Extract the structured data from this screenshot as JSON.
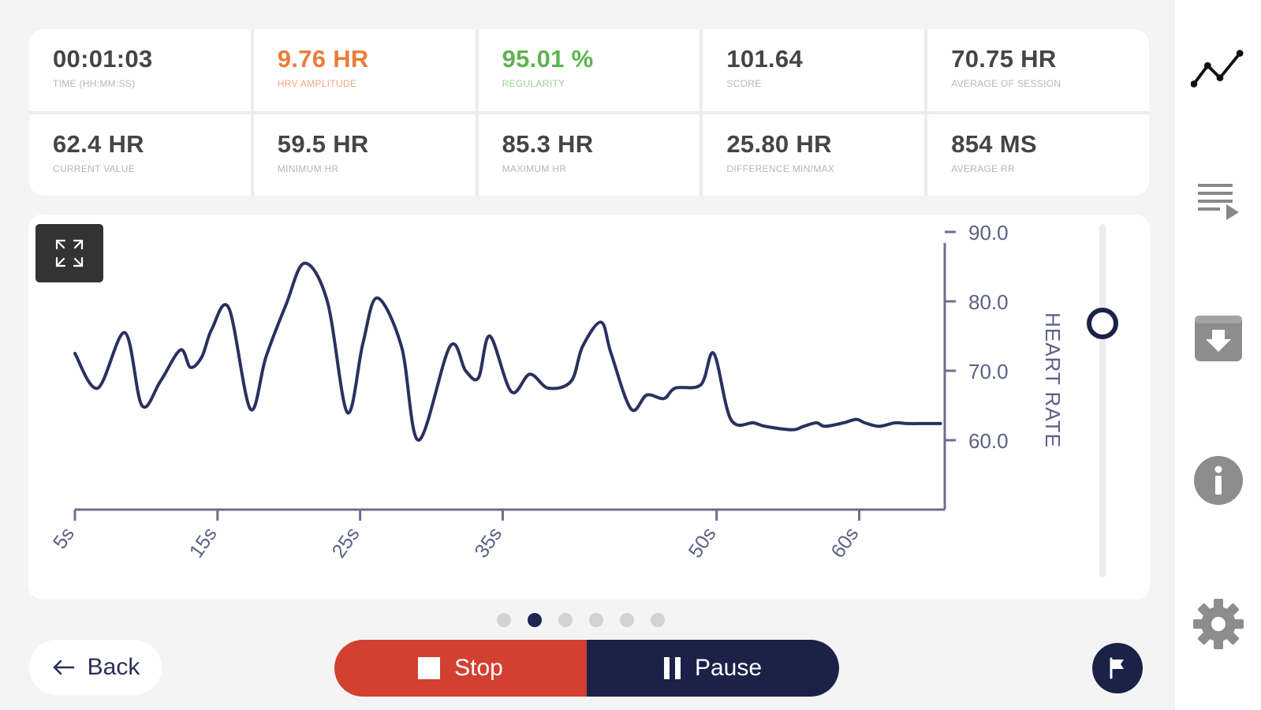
{
  "stats": [
    {
      "value": "00:01:03",
      "label": "TIME (HH:MM:SS)",
      "color": "#454545"
    },
    {
      "value": "9.76 HR",
      "label": "HRV AMPLITUDE",
      "color": "#ec7c3a"
    },
    {
      "value": "95.01 %",
      "label": "REGULARITY",
      "color": "#5db450"
    },
    {
      "value": "101.64",
      "label": "SCORE",
      "color": "#454545"
    },
    {
      "value": "70.75 HR",
      "label": "AVERAGE OF SESSION",
      "color": "#454545"
    },
    {
      "value": "62.4 HR",
      "label": "CURRENT VALUE",
      "color": "#454545"
    },
    {
      "value": "59.5 HR",
      "label": "MINIMUM HR",
      "color": "#454545"
    },
    {
      "value": "85.3 HR",
      "label": "MAXIMUM HR",
      "color": "#454545"
    },
    {
      "value": "25.80 HR",
      "label": "DIFFERENCE MIN/MAX",
      "color": "#454545"
    },
    {
      "value": "854 MS",
      "label": "AVERAGE RR",
      "color": "#454545"
    }
  ],
  "chart_data": {
    "type": "line",
    "ylabel": "HEART RATE",
    "xlabel": "",
    "ylim": [
      50,
      90
    ],
    "xlim": [
      5,
      66
    ],
    "y_ticks": [
      90,
      80,
      70,
      60
    ],
    "y_tick_labels": [
      "90.0",
      "80.0",
      "70.0",
      "60.0"
    ],
    "x_ticks": [
      5,
      15,
      25,
      35,
      50,
      60
    ],
    "x_tick_labels": [
      "5s",
      "15s",
      "25s",
      "35s",
      "50s",
      "60s"
    ],
    "grid": false,
    "line_color": "#2a3160",
    "series": [
      {
        "name": "",
        "x": [
          5,
          6.6,
          8.5,
          9.7,
          11.0,
          12.4,
          13.1,
          13.9,
          14.6,
          15.8,
          17.3,
          18.4,
          19.8,
          21.1,
          22.7,
          24.1,
          25.2,
          26.2,
          27.9,
          29.1,
          31.3,
          32.4,
          33.3,
          34.1,
          35.6,
          36.9,
          38.2,
          39.8,
          40.6,
          41.9,
          42.6,
          44.0,
          45.1,
          46.3,
          47.1,
          48.9,
          49.8,
          51.0,
          52.6,
          53.4,
          55.3,
          56.1,
          57.0,
          57.6,
          58.9,
          59.8,
          60.4,
          61.4,
          62.5,
          63.4,
          64.6,
          65.7
        ],
        "y": [
          72.5,
          67.5,
          75.5,
          65.0,
          68.5,
          73.0,
          70.5,
          72.0,
          76.0,
          79.0,
          64.5,
          72.0,
          79.5,
          85.5,
          80.0,
          64.0,
          74.0,
          80.5,
          73.5,
          60.0,
          73.5,
          70.0,
          69.0,
          75.0,
          67.0,
          69.5,
          67.5,
          68.5,
          73.5,
          77.0,
          72.5,
          64.5,
          66.5,
          66.0,
          67.5,
          68.0,
          72.5,
          63.0,
          62.5,
          62.0,
          61.5,
          62.0,
          62.5,
          62.0,
          62.5,
          63.0,
          62.5,
          62.0,
          62.5,
          62.4,
          62.4,
          62.4
        ]
      }
    ]
  },
  "chart": {
    "expand_icon": "expand-icon"
  },
  "pager": {
    "count": 6,
    "active": 1
  },
  "controls": {
    "back_label": "Back",
    "stop_label": "Stop",
    "pause_label": "Pause"
  },
  "sidebar": {
    "icons": [
      "chart-line-icon",
      "playlist-icon",
      "download-icon",
      "info-icon",
      "settings-icon"
    ]
  },
  "flag": {
    "icon": "flag-icon"
  }
}
